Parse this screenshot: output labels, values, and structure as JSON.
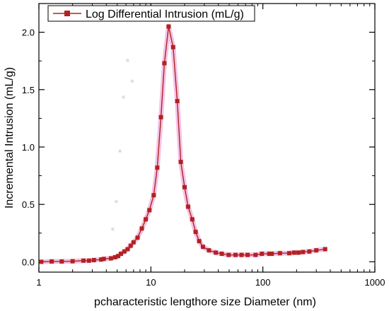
{
  "chart_data": {
    "type": "line",
    "x_scale": "log",
    "xlabel": "pcharacteristic lengthore size Diameter (nm)",
    "ylabel": "Incremental Intrusion (mL/g)",
    "xlim": [
      1,
      1000
    ],
    "ylim": [
      -0.09,
      2.25
    ],
    "x_ticks": [
      1,
      10,
      100,
      1000
    ],
    "x_tick_labels": [
      "1",
      "10",
      "100",
      "1000"
    ],
    "y_ticks": [
      0.0,
      0.5,
      1.0,
      1.5,
      2.0
    ],
    "y_tick_labels": [
      "0.0",
      "0.5",
      "1.0",
      "1.5",
      "2.0"
    ],
    "grid": false,
    "legend_position": "top-left",
    "series": [
      {
        "name": "Log Differential Intrusion (mL/g)",
        "color": "#b22222",
        "glow_color": "#f2b8e3",
        "marker": "square",
        "x": [
          1.05,
          1.3,
          1.6,
          2.0,
          2.5,
          2.8,
          3.1,
          3.6,
          3.8,
          4.4,
          4.8,
          5.1,
          5.4,
          5.8,
          6.2,
          6.6,
          7.0,
          7.6,
          8.3,
          9.0,
          9.7,
          10.6,
          11.4,
          12.3,
          13.2,
          14.4,
          15.8,
          17.2,
          18.5,
          20.0,
          21.5,
          23.4,
          25.1,
          27.0,
          29.2,
          33.0,
          38.0,
          43.0,
          49.5,
          57.0,
          64.5,
          73.0,
          86.0,
          98.0,
          114.0,
          120.0,
          142.0,
          172.0,
          190.0,
          208.0,
          228.0,
          260.0,
          300.0,
          360.0
        ],
        "values": [
          0.0,
          0.003,
          0.003,
          0.005,
          0.01,
          0.01,
          0.015,
          0.02,
          0.025,
          0.03,
          0.04,
          0.05,
          0.07,
          0.09,
          0.11,
          0.14,
          0.17,
          0.21,
          0.29,
          0.37,
          0.45,
          0.58,
          0.82,
          1.26,
          1.73,
          2.05,
          1.87,
          1.4,
          0.87,
          0.65,
          0.48,
          0.37,
          0.26,
          0.18,
          0.13,
          0.1,
          0.08,
          0.07,
          0.06,
          0.06,
          0.06,
          0.06,
          0.06,
          0.07,
          0.07,
          0.07,
          0.075,
          0.075,
          0.08,
          0.08,
          0.085,
          0.09,
          0.1,
          0.11
        ]
      }
    ]
  }
}
